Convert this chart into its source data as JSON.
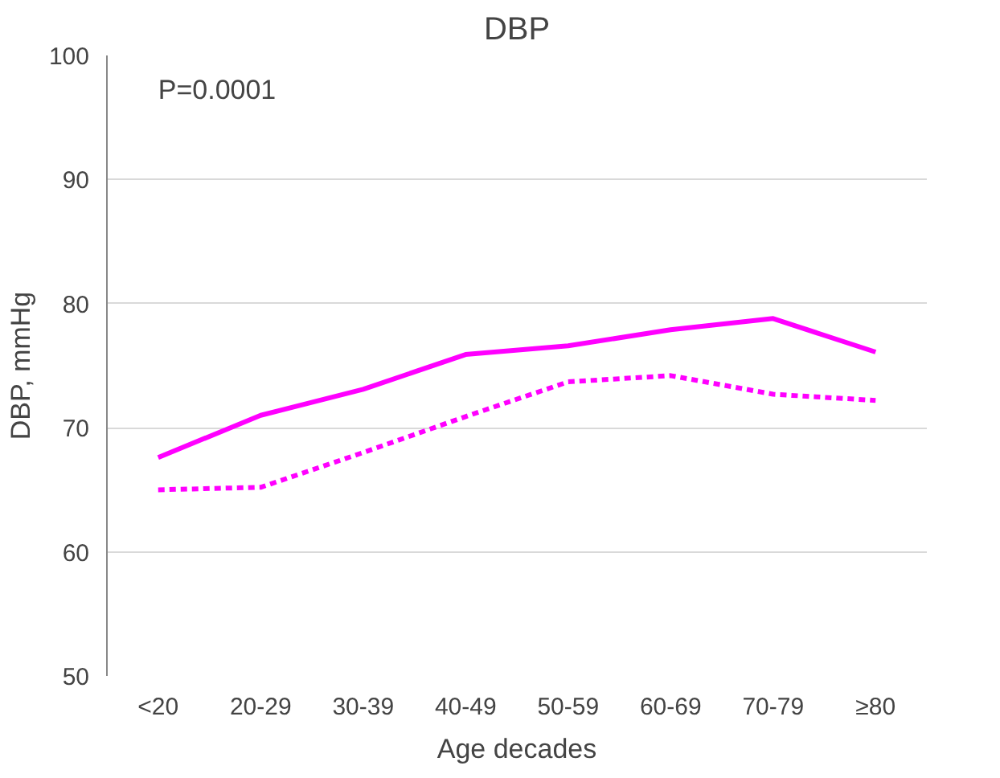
{
  "chart_data": {
    "type": "line",
    "title": "DBP",
    "xlabel": "Age decades",
    "ylabel": "DBP, mmHg",
    "annotations": [
      "P=0.0001"
    ],
    "categories": [
      "<20",
      "20-29",
      "30-39",
      "40-49",
      "50-59",
      "60-69",
      "70-79",
      "≥80"
    ],
    "series": [
      {
        "color": "#ff00ff",
        "line_style": "solid",
        "values": [
          67.6,
          71.0,
          73.1,
          75.9,
          76.6,
          77.9,
          78.8,
          76.1
        ]
      },
      {
        "color": "#ff00ff",
        "line_style": "dashed",
        "values": [
          65.0,
          65.2,
          68.0,
          70.9,
          73.7,
          74.2,
          72.7,
          72.2
        ]
      }
    ],
    "ylim": [
      50,
      100
    ],
    "yticks": [
      50,
      60,
      70,
      80,
      90,
      100
    ],
    "grid": "y",
    "marker": "none"
  }
}
